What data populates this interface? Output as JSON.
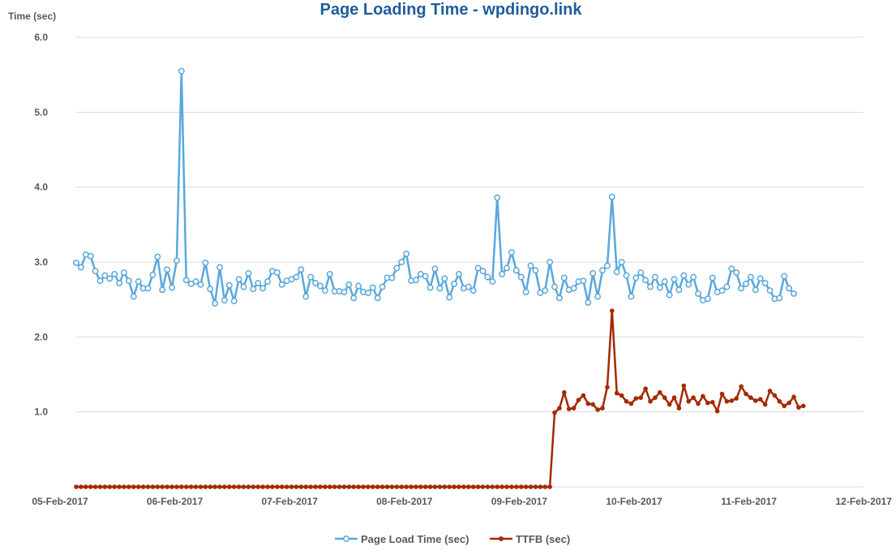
{
  "chart_data": {
    "type": "line",
    "title": "Page Loading Time - wpdingo.link",
    "ylabel": "Time (sec)",
    "xlabel": "",
    "ylim": [
      0,
      6.0
    ],
    "xlim": [
      "05-Feb-2017",
      "12-Feb-2017"
    ],
    "yticks": [
      "1.0",
      "2.0",
      "3.0",
      "4.0",
      "5.0",
      "6.0"
    ],
    "xticks": [
      "05-Feb-2017",
      "06-Feb-2017",
      "07-Feb-2017",
      "08-Feb-2017",
      "09-Feb-2017",
      "10-Feb-2017",
      "11-Feb-2017",
      "12-Feb-2017"
    ],
    "grid": true,
    "legend_position": "bottom",
    "colors": {
      "title": "#1f5c99",
      "page_load": "#5aa7dd",
      "ttfb": "#a32a00",
      "grid": "#d9d9d9",
      "axis_text": "#595959"
    },
    "series": [
      {
        "name": "Page Load Time (sec)",
        "marker": "open-circle",
        "x_start": "05-Feb-2017 00:00",
        "x_step_hours": 1,
        "values": [
          2.99,
          2.93,
          3.1,
          3.08,
          2.88,
          2.75,
          2.82,
          2.78,
          2.84,
          2.72,
          2.86,
          2.75,
          2.54,
          2.74,
          2.65,
          2.65,
          2.83,
          3.07,
          2.63,
          2.9,
          2.66,
          3.02,
          5.55,
          2.76,
          2.71,
          2.74,
          2.7,
          2.99,
          2.64,
          2.45,
          2.93,
          2.49,
          2.69,
          2.48,
          2.77,
          2.67,
          2.85,
          2.64,
          2.72,
          2.65,
          2.74,
          2.88,
          2.86,
          2.7,
          2.75,
          2.77,
          2.8,
          2.9,
          2.54,
          2.8,
          2.72,
          2.68,
          2.62,
          2.84,
          2.61,
          2.61,
          2.6,
          2.7,
          2.52,
          2.68,
          2.6,
          2.59,
          2.66,
          2.52,
          2.67,
          2.79,
          2.79,
          2.92,
          3.0,
          3.11,
          2.75,
          2.76,
          2.84,
          2.81,
          2.66,
          2.91,
          2.65,
          2.78,
          2.53,
          2.71,
          2.84,
          2.65,
          2.67,
          2.62,
          2.92,
          2.88,
          2.8,
          2.74,
          3.86,
          2.84,
          2.92,
          3.13,
          2.89,
          2.8,
          2.6,
          2.95,
          2.89,
          2.59,
          2.62,
          3.0,
          2.67,
          2.52,
          2.79,
          2.63,
          2.65,
          2.74,
          2.75,
          2.46,
          2.85,
          2.54,
          2.89,
          2.95,
          3.87,
          2.87,
          3.0,
          2.82,
          2.54,
          2.79,
          2.86,
          2.76,
          2.67,
          2.8,
          2.66,
          2.74,
          2.56,
          2.77,
          2.63,
          2.82,
          2.7,
          2.8,
          2.58,
          2.49,
          2.51,
          2.79,
          2.6,
          2.62,
          2.67,
          2.91,
          2.86,
          2.65,
          2.71,
          2.8,
          2.63,
          2.78,
          2.72,
          2.62,
          2.51,
          2.52,
          2.81,
          2.65,
          2.58
        ]
      },
      {
        "name": "TTFB (sec)",
        "marker": "filled-circle",
        "x_start": "05-Feb-2017 00:00",
        "x_step_hours": 1,
        "values": [
          0,
          0,
          0,
          0,
          0,
          0,
          0,
          0,
          0,
          0,
          0,
          0,
          0,
          0,
          0,
          0,
          0,
          0,
          0,
          0,
          0,
          0,
          0,
          0,
          0,
          0,
          0,
          0,
          0,
          0,
          0,
          0,
          0,
          0,
          0,
          0,
          0,
          0,
          0,
          0,
          0,
          0,
          0,
          0,
          0,
          0,
          0,
          0,
          0,
          0,
          0,
          0,
          0,
          0,
          0,
          0,
          0,
          0,
          0,
          0,
          0,
          0,
          0,
          0,
          0,
          0,
          0,
          0,
          0,
          0,
          0,
          0,
          0,
          0,
          0,
          0,
          0,
          0,
          0,
          0,
          0,
          0,
          0,
          0,
          0,
          0,
          0,
          0,
          0,
          0,
          0,
          0,
          0,
          0,
          0,
          0,
          0,
          0,
          0,
          0,
          0.99,
          1.05,
          1.26,
          1.04,
          1.05,
          1.16,
          1.22,
          1.11,
          1.1,
          1.03,
          1.05,
          1.33,
          2.35,
          1.25,
          1.22,
          1.14,
          1.11,
          1.18,
          1.19,
          1.31,
          1.14,
          1.19,
          1.26,
          1.19,
          1.1,
          1.19,
          1.05,
          1.35,
          1.14,
          1.19,
          1.11,
          1.21,
          1.12,
          1.13,
          1.01,
          1.24,
          1.14,
          1.15,
          1.18,
          1.34,
          1.24,
          1.19,
          1.15,
          1.17,
          1.1,
          1.28,
          1.22,
          1.14,
          1.08,
          1.12,
          1.2,
          1.06,
          1.08
        ]
      }
    ]
  }
}
